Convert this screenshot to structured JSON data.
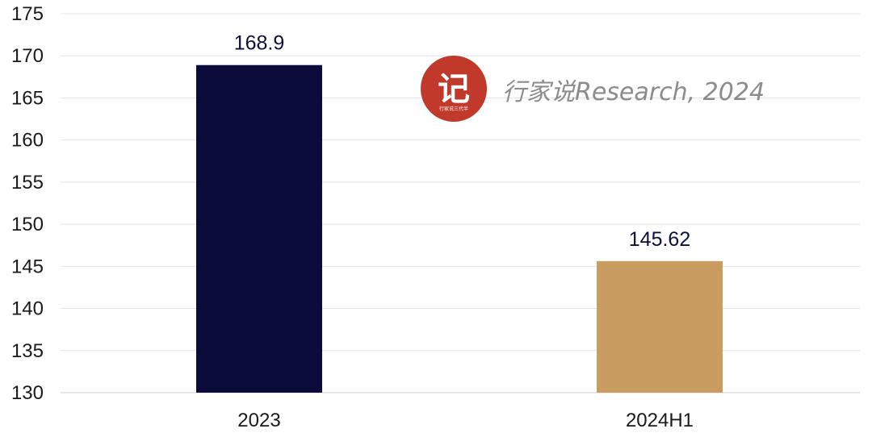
{
  "chart_data": {
    "type": "bar",
    "categories": [
      "2023",
      "2024H1"
    ],
    "values": [
      168.9,
      145.62
    ],
    "value_labels": [
      "168.9",
      "145.62"
    ],
    "bar_colors": [
      "#0b0b3b",
      "#c89d5f"
    ],
    "ylim": [
      130,
      175
    ],
    "yticks": [
      130,
      135,
      140,
      145,
      150,
      155,
      160,
      165,
      170,
      175
    ],
    "grid": true,
    "title": "",
    "xlabel": "",
    "ylabel": ""
  },
  "watermark": {
    "text": "行家说Research, 2024",
    "logo_glyph": "记",
    "logo_caption": "行家说三代半",
    "logo_color": "#c0392b"
  }
}
